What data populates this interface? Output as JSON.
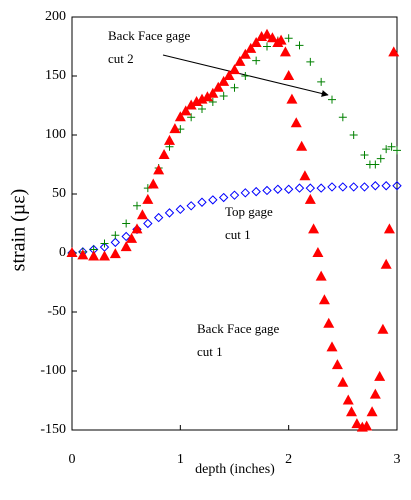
{
  "chart_data": {
    "type": "scatter",
    "xlabel": "depth (inches)",
    "ylabel": "strain (µε)",
    "xlim": [
      0,
      3
    ],
    "ylim": [
      -150,
      200
    ],
    "xticks": [
      0,
      1,
      2,
      3
    ],
    "yticks": [
      -150,
      -100,
      -50,
      0,
      50,
      100,
      150,
      200
    ],
    "annotations": [
      {
        "lines": [
          "Back Face gage",
          "cut 2"
        ]
      },
      {
        "lines": [
          "Top gage",
          "cut 1"
        ]
      },
      {
        "lines": [
          "Back Face gage",
          "cut 1"
        ]
      }
    ],
    "series": [
      {
        "marker": "diamond",
        "color": "#0000ff",
        "x": [
          0,
          0.1,
          0.2,
          0.3,
          0.4,
          0.5,
          0.6,
          0.7,
          0.8,
          0.9,
          1.0,
          1.1,
          1.2,
          1.3,
          1.4,
          1.5,
          1.6,
          1.7,
          1.8,
          1.9,
          2.0,
          2.1,
          2.2,
          2.3,
          2.4,
          2.5,
          2.6,
          2.7,
          2.8,
          2.9,
          3.0
        ],
        "values": [
          0,
          1,
          3,
          5,
          9,
          14,
          20,
          25,
          30,
          34,
          37,
          40,
          43,
          45,
          47,
          49,
          51,
          52,
          53,
          54,
          54,
          55,
          55,
          55,
          56,
          56,
          56,
          56,
          57,
          57,
          57
        ]
      },
      {
        "marker": "plus",
        "color": "#008000",
        "x": [
          0,
          0.1,
          0.2,
          0.3,
          0.4,
          0.5,
          0.6,
          0.7,
          0.8,
          0.9,
          1.0,
          1.1,
          1.2,
          1.3,
          1.4,
          1.5,
          1.6,
          1.7,
          1.8,
          1.9,
          2.0,
          2.1,
          2.2,
          2.3,
          2.4,
          2.5,
          2.6,
          2.7,
          2.75,
          2.8,
          2.85,
          2.9,
          2.95,
          3.0
        ],
        "values": [
          0,
          1,
          3,
          8,
          15,
          25,
          40,
          55,
          72,
          90,
          105,
          115,
          122,
          128,
          133,
          140,
          150,
          163,
          175,
          180,
          182,
          176,
          162,
          145,
          130,
          115,
          100,
          83,
          75,
          75,
          80,
          88,
          90,
          87
        ]
      },
      {
        "marker": "triangle",
        "color": "#ff0000",
        "x": [
          0,
          0.1,
          0.2,
          0.3,
          0.4,
          0.5,
          0.55,
          0.6,
          0.65,
          0.7,
          0.75,
          0.8,
          0.85,
          0.9,
          0.95,
          1.0,
          1.05,
          1.1,
          1.15,
          1.2,
          1.25,
          1.3,
          1.35,
          1.4,
          1.45,
          1.5,
          1.55,
          1.6,
          1.65,
          1.7,
          1.75,
          1.8,
          1.85,
          1.9,
          1.93,
          1.97,
          2.0,
          2.03,
          2.07,
          2.12,
          2.15,
          2.2,
          2.23,
          2.27,
          2.3,
          2.33,
          2.37,
          2.4,
          2.45,
          2.5,
          2.55,
          2.58,
          2.63,
          2.68,
          2.72,
          2.77,
          2.8,
          2.84,
          2.87,
          2.9,
          2.93,
          2.97
        ],
        "values": [
          0,
          -2,
          -3,
          -3,
          -1,
          5,
          12,
          20,
          32,
          45,
          58,
          70,
          83,
          95,
          105,
          115,
          120,
          125,
          128,
          130,
          132,
          135,
          140,
          145,
          150,
          155,
          162,
          168,
          173,
          178,
          183,
          185,
          182,
          178,
          180,
          170,
          150,
          130,
          110,
          90,
          65,
          45,
          20,
          0,
          -20,
          -40,
          -60,
          -80,
          -95,
          -110,
          -125,
          -135,
          -145,
          -148,
          -147,
          -135,
          -120,
          -105,
          -65,
          -10,
          20,
          170
        ]
      }
    ]
  }
}
